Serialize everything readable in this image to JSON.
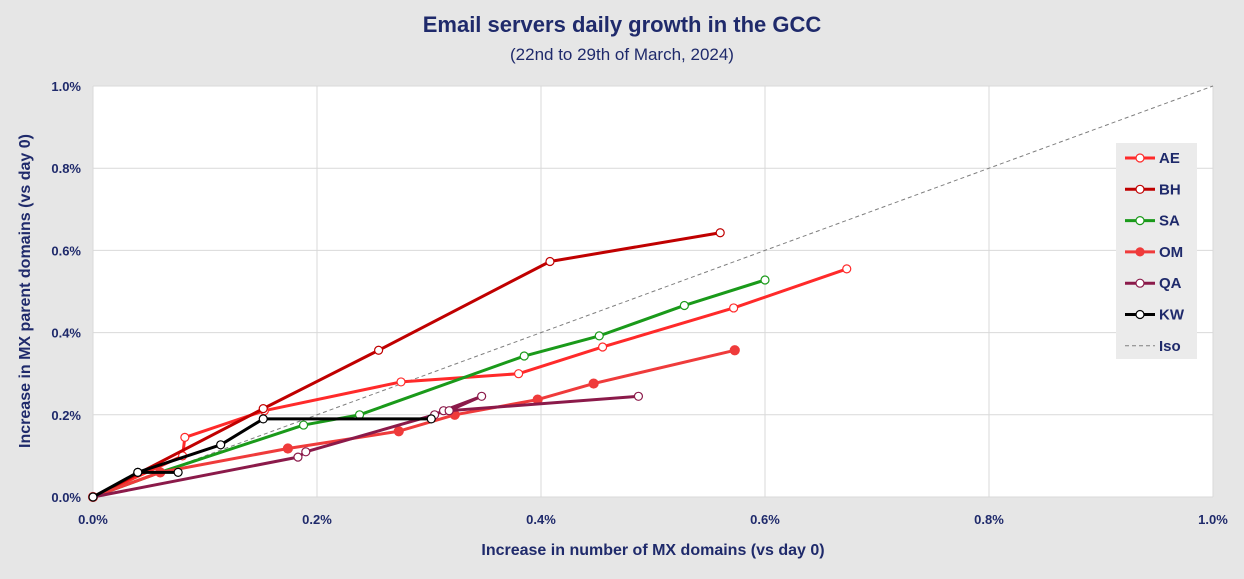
{
  "chart_data": {
    "type": "line",
    "title": "Email servers daily growth in the GCC",
    "subtitle": "(22nd to 29th of March, 2024)",
    "xlabel": "Increase in number of MX domains (vs day 0)",
    "ylabel": "Increase in MX parent domains (vs day 0)",
    "xlim": [
      0,
      1.0
    ],
    "ylim": [
      0,
      1.0
    ],
    "x_ticks": [
      "0.0%",
      "0.2%",
      "0.4%",
      "0.6%",
      "0.8%",
      "1.0%"
    ],
    "y_ticks": [
      "0.0%",
      "0.2%",
      "0.4%",
      "0.6%",
      "0.8%",
      "1.0%"
    ],
    "grid": true,
    "legend_position": "right",
    "series": [
      {
        "name": "AE",
        "color": "#ff2a2a",
        "marker": "open",
        "x": [
          0,
          0.08,
          0.082,
          0.153,
          0.275,
          0.38,
          0.455,
          0.572,
          0.673
        ],
        "y": [
          0,
          0.1,
          0.145,
          0.21,
          0.28,
          0.3,
          0.365,
          0.46,
          0.555
        ]
      },
      {
        "name": "BH",
        "color": "#c00000",
        "marker": "open",
        "x": [
          0,
          0.152,
          0.255,
          0.408,
          0.56
        ],
        "y": [
          0,
          0.215,
          0.357,
          0.573,
          0.643
        ]
      },
      {
        "name": "SA",
        "color": "#1a9a1a",
        "marker": "open",
        "x": [
          0,
          0.06,
          0.188,
          0.238,
          0.385,
          0.452,
          0.528,
          0.6
        ],
        "y": [
          0,
          0.06,
          0.175,
          0.2,
          0.343,
          0.392,
          0.466,
          0.528
        ]
      },
      {
        "name": "OM",
        "color": "#ef3b3b",
        "marker": "filled",
        "x": [
          0,
          0.06,
          0.174,
          0.273,
          0.323,
          0.397,
          0.447,
          0.573
        ],
        "y": [
          0,
          0.06,
          0.118,
          0.16,
          0.2,
          0.237,
          0.276,
          0.357
        ]
      },
      {
        "name": "QA",
        "color": "#8b1a4a",
        "marker": "open",
        "x": [
          0,
          0.183,
          0.19,
          0.305,
          0.313,
          0.347,
          0.318,
          0.487
        ],
        "y": [
          0,
          0.097,
          0.11,
          0.2,
          0.21,
          0.245,
          0.21,
          0.245
        ]
      },
      {
        "name": "KW",
        "color": "#000000",
        "marker": "open",
        "x": [
          0,
          0.04,
          0.076,
          0.04,
          0.114,
          0.152,
          0.302
        ],
        "y": [
          0,
          0.06,
          0.06,
          0.06,
          0.127,
          0.19,
          0.19
        ]
      },
      {
        "name": "Iso",
        "color": "#7f7f7f",
        "marker": "none",
        "dashed": true,
        "x": [
          0,
          1.0
        ],
        "y": [
          0,
          1.0
        ]
      }
    ]
  }
}
